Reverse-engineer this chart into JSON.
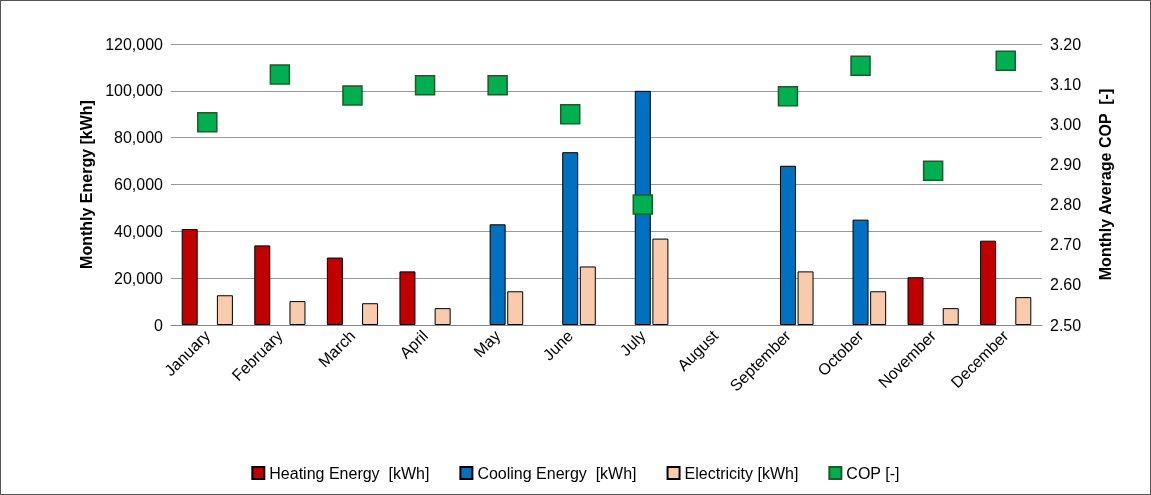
{
  "chart_data": {
    "type": "bar",
    "categories": [
      "January",
      "February",
      "March",
      "April",
      "May",
      "June",
      "July",
      "August",
      "September",
      "October",
      "November",
      "December"
    ],
    "series": [
      {
        "name": "Heating Energy  [kWh]",
        "color": "#c00000",
        "values": [
          41000,
          34000,
          28800,
          22900,
          null,
          null,
          null,
          null,
          null,
          null,
          20400,
          36000
        ]
      },
      {
        "name": "Cooling Energy  [kWh]",
        "color": "#0070c0",
        "values": [
          null,
          null,
          null,
          null,
          43000,
          73800,
          100000,
          null,
          68000,
          45000,
          null,
          null
        ]
      },
      {
        "name": "Electricity [kWh]",
        "color": "#f8cbad",
        "values": [
          12700,
          10200,
          9300,
          7200,
          14400,
          25000,
          36900,
          null,
          22900,
          14400,
          7200,
          11900
        ]
      },
      {
        "name": "COP [-]",
        "type": "scatter",
        "axis": "y2",
        "color": "#00b050",
        "values": [
          3.005,
          3.124,
          3.072,
          3.097,
          3.097,
          3.025,
          2.8,
          null,
          3.07,
          3.146,
          2.884,
          3.158
        ]
      }
    ],
    "ylabel": "Monthly Energy [kWh]",
    "y2label": "Monthly Average COP  [-]",
    "ylim": [
      0,
      120000
    ],
    "yticks": [
      {
        "value": 0,
        "label": "0"
      },
      {
        "value": 20000,
        "label": "20,000"
      },
      {
        "value": 40000,
        "label": "40,000"
      },
      {
        "value": 60000,
        "label": "60,000"
      },
      {
        "value": 80000,
        "label": "80,000"
      },
      {
        "value": 100000,
        "label": "100,000"
      },
      {
        "value": 120000,
        "label": "120,000"
      }
    ],
    "y2lim": [
      2.5,
      3.2
    ],
    "y2ticks": [
      {
        "value": 2.5,
        "label": "2.50"
      },
      {
        "value": 2.6,
        "label": "2.60"
      },
      {
        "value": 2.7,
        "label": "2.70"
      },
      {
        "value": 2.8,
        "label": "2.80"
      },
      {
        "value": 2.9,
        "label": "2.90"
      },
      {
        "value": 3.0,
        "label": "3.00"
      },
      {
        "value": 3.1,
        "label": "3.10"
      },
      {
        "value": 3.2,
        "label": "3.20"
      }
    ],
    "grid": "y",
    "legend": "bottom",
    "marker": "square"
  }
}
